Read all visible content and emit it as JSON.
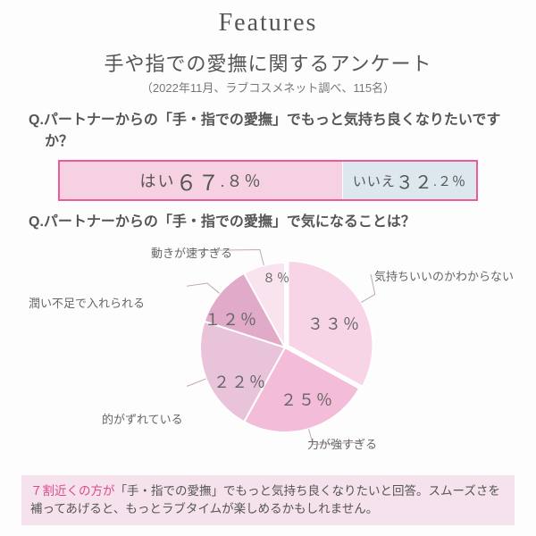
{
  "header": {
    "title": "Features"
  },
  "survey": {
    "title": "手や指での愛撫に関するアンケート",
    "subtitle": "（2022年11月、ラブコスメネット調べ、115名）"
  },
  "q1": {
    "prefix": "Q.",
    "text": "パートナーからの「手・指での愛撫」でもっと気持ち良くなりたいですか？",
    "bar": {
      "yes_label": "はい",
      "yes_value_big": "６７",
      "yes_value_small": ".８％",
      "yes_pct": 67.8,
      "no_label": "いいえ",
      "no_value_big": "３２",
      "no_value_small": ".２％",
      "no_pct": 32.2,
      "yes_bg": "#f6d1e1",
      "no_bg": "#dde7ee",
      "border": "#ea5a9c"
    }
  },
  "q2": {
    "prefix": "Q.",
    "text": "パートナーからの「手・指での愛撫」で気になることは？",
    "pie": {
      "type": "pie",
      "slices": [
        {
          "label": "気持ちいいのかわからない",
          "value": 33,
          "pct_text": "３３％",
          "color": "#f8d5e6"
        },
        {
          "label": "力が強すぎる",
          "value": 25,
          "pct_text": "２５％",
          "color": "#f3bcd8"
        },
        {
          "label": "的がずれている",
          "value": 22,
          "pct_text": "２２％",
          "color": "#e9c3da"
        },
        {
          "label": "潤い不足で入れられる",
          "value": 12,
          "pct_text": "１２％",
          "color": "#e1aac9"
        },
        {
          "label": "動きが速すぎる",
          "value": 8,
          "pct_text": "８％",
          "color": "#f8e3ee"
        }
      ],
      "stroke": "#ffffff",
      "stroke_width": 2,
      "leader_stroke": "#bfa8b5",
      "radius": 95,
      "pull_slice_index": 0,
      "pull_dist": 4
    }
  },
  "footer": {
    "highlight": "７割近くの方が",
    "rest": "「手・指での愛撫」でもっと気持ち良くなりたいと回答。スムーズさを補ってあげると、もっとラブタイムが楽しめるかもしれません。",
    "bg": "#f6e2ed"
  }
}
